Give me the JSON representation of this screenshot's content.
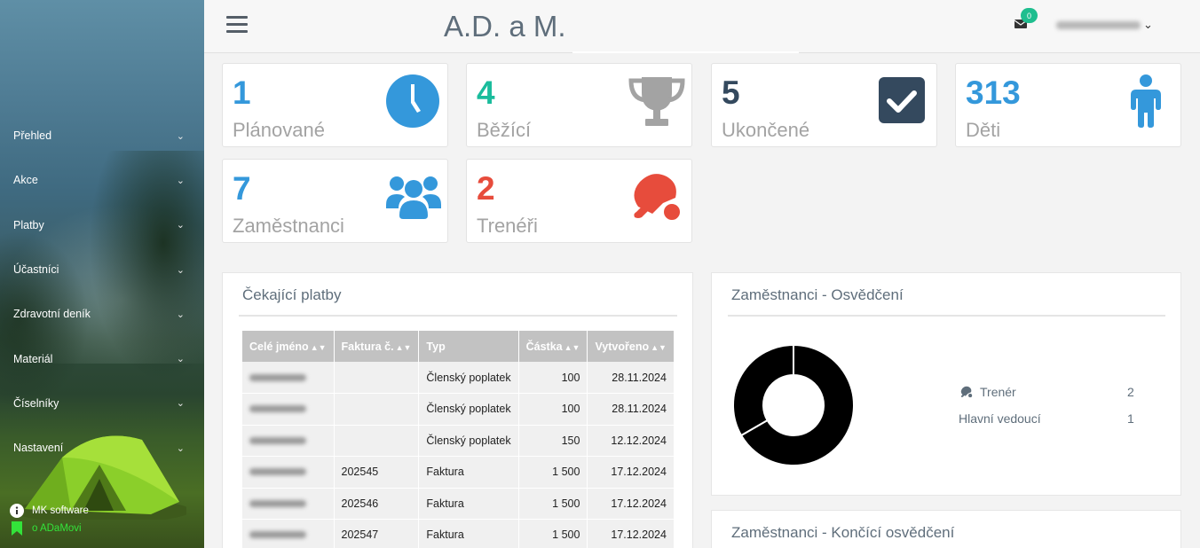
{
  "sidebar": {
    "menu": [
      {
        "label": "Přehled"
      },
      {
        "label": "Akce"
      },
      {
        "label": "Platby"
      },
      {
        "label": "Účastníci"
      },
      {
        "label": "Zdravotní deník"
      },
      {
        "label": "Materiál"
      },
      {
        "label": "Číselníky"
      },
      {
        "label": "Nastavení"
      }
    ],
    "footer": {
      "company": "MK software",
      "about": "o ADaMovi"
    },
    "colors": {
      "about_link": "#33e33a"
    }
  },
  "header": {
    "brand": "A.D. a M.",
    "mail_badge": "0",
    "user_menu_icon": "chevron-down-icon"
  },
  "stats": [
    {
      "value": "1",
      "label": "Plánované",
      "color": "#3498db",
      "icon": "clock-icon"
    },
    {
      "value": "4",
      "label": "Běžící",
      "color": "#1abc9c",
      "icon": "trophy-icon"
    },
    {
      "value": "5",
      "label": "Ukončené",
      "color": "#34495e",
      "icon": "checkbox-icon"
    },
    {
      "value": "313",
      "label": "Děti",
      "color": "#3498db",
      "icon": "child-icon"
    },
    {
      "value": "7",
      "label": "Zaměstnanci",
      "color": "#3498db",
      "icon": "users-icon"
    },
    {
      "value": "2",
      "label": "Trenéři",
      "color": "#e74c3c",
      "icon": "table-tennis-icon"
    }
  ],
  "payments": {
    "title": "Čekající platby",
    "columns": [
      "Celé jméno",
      "Faktura č.",
      "Typ",
      "Částka",
      "Vytvořeno"
    ],
    "rows": [
      {
        "invoice": "",
        "type": "Členský poplatek",
        "amount": "100",
        "created": "28.11.2024"
      },
      {
        "invoice": "",
        "type": "Členský poplatek",
        "amount": "100",
        "created": "28.11.2024"
      },
      {
        "invoice": "",
        "type": "Členský poplatek",
        "amount": "150",
        "created": "12.12.2024"
      },
      {
        "invoice": "202545",
        "type": "Faktura",
        "amount": "1 500",
        "created": "17.12.2024"
      },
      {
        "invoice": "202546",
        "type": "Faktura",
        "amount": "1 500",
        "created": "17.12.2024"
      },
      {
        "invoice": "202547",
        "type": "Faktura",
        "amount": "1 500",
        "created": "17.12.2024"
      }
    ]
  },
  "certifications": {
    "title": "Zaměstnanci - Osvědčení",
    "legend": [
      {
        "label": "Trenér",
        "value": "2",
        "icon": "table-tennis-icon"
      },
      {
        "label": "Hlavní vedoucí",
        "value": "1",
        "icon": ""
      }
    ]
  },
  "expiring": {
    "title": "Zaměstnanci - Končící osvědčení"
  },
  "chart_data": {
    "type": "pie",
    "categories": [
      "Trenér",
      "Hlavní vedoucí"
    ],
    "values": [
      2,
      1
    ],
    "title": ""
  }
}
